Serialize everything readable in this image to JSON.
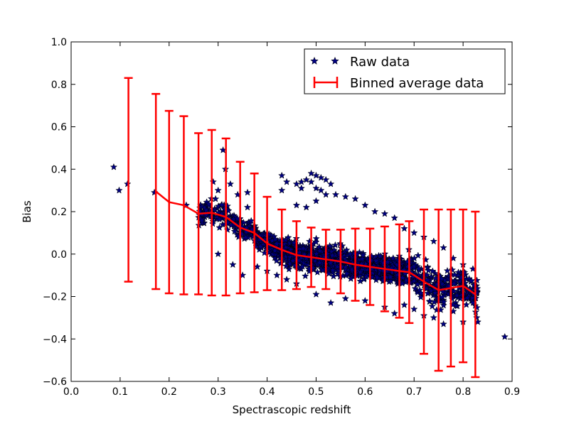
{
  "chart_data": {
    "type": "scatter",
    "title": "",
    "xlabel": "Spectrascopic redshift",
    "ylabel": "Bias",
    "xlim": [
      0.0,
      0.9
    ],
    "ylim": [
      -0.6,
      1.0
    ],
    "xticks": [
      "0.0",
      "0.1",
      "0.2",
      "0.3",
      "0.4",
      "0.5",
      "0.6",
      "0.7",
      "0.8",
      "0.9"
    ],
    "yticks": [
      "−0.6",
      "−0.4",
      "−0.2",
      "0.0",
      "0.2",
      "0.4",
      "0.6",
      "0.8",
      "1.0"
    ],
    "grid": false,
    "legend_position": "top-right",
    "series": [
      {
        "name": "Raw data",
        "kind": "scatter",
        "marker": "star",
        "color": "#00007f",
        "points": [
          [
            0.087,
            0.41
          ],
          [
            0.098,
            0.3
          ],
          [
            0.115,
            0.33
          ],
          [
            0.17,
            0.29
          ],
          [
            0.235,
            0.23
          ],
          [
            0.31,
            0.49
          ],
          [
            0.315,
            0.4
          ],
          [
            0.29,
            0.34
          ],
          [
            0.325,
            0.33
          ],
          [
            0.3,
            0.3
          ],
          [
            0.34,
            0.28
          ],
          [
            0.36,
            0.29
          ],
          [
            0.36,
            0.22
          ],
          [
            0.43,
            0.37
          ],
          [
            0.44,
            0.34
          ],
          [
            0.43,
            0.3
          ],
          [
            0.46,
            0.33
          ],
          [
            0.47,
            0.31
          ],
          [
            0.47,
            0.34
          ],
          [
            0.48,
            0.35
          ],
          [
            0.49,
            0.34
          ],
          [
            0.49,
            0.38
          ],
          [
            0.5,
            0.37
          ],
          [
            0.51,
            0.36
          ],
          [
            0.52,
            0.35
          ],
          [
            0.53,
            0.33
          ],
          [
            0.5,
            0.31
          ],
          [
            0.51,
            0.3
          ],
          [
            0.46,
            0.23
          ],
          [
            0.48,
            0.22
          ],
          [
            0.5,
            0.25
          ],
          [
            0.52,
            0.28
          ],
          [
            0.54,
            0.28
          ],
          [
            0.56,
            0.27
          ],
          [
            0.58,
            0.26
          ],
          [
            0.6,
            0.23
          ],
          [
            0.62,
            0.2
          ],
          [
            0.64,
            0.19
          ],
          [
            0.66,
            0.17
          ],
          [
            0.68,
            0.12
          ],
          [
            0.7,
            0.1
          ],
          [
            0.72,
            0.08
          ],
          [
            0.74,
            0.06
          ],
          [
            0.76,
            0.03
          ],
          [
            0.78,
            -0.02
          ],
          [
            0.8,
            -0.05
          ],
          [
            0.82,
            -0.07
          ],
          [
            0.3,
            0.0
          ],
          [
            0.33,
            -0.05
          ],
          [
            0.35,
            -0.1
          ],
          [
            0.38,
            -0.06
          ],
          [
            0.4,
            -0.08
          ],
          [
            0.42,
            -0.1
          ],
          [
            0.44,
            -0.12
          ],
          [
            0.46,
            -0.14
          ],
          [
            0.5,
            -0.19
          ],
          [
            0.53,
            -0.23
          ],
          [
            0.56,
            -0.21
          ],
          [
            0.6,
            -0.22
          ],
          [
            0.64,
            -0.25
          ],
          [
            0.66,
            -0.28
          ],
          [
            0.68,
            -0.24
          ],
          [
            0.7,
            -0.26
          ],
          [
            0.72,
            -0.29
          ],
          [
            0.74,
            -0.3
          ],
          [
            0.76,
            -0.33
          ],
          [
            0.78,
            -0.27
          ],
          [
            0.8,
            -0.32
          ],
          [
            0.82,
            -0.23
          ],
          [
            0.83,
            -0.32
          ],
          [
            0.885,
            -0.39
          ]
        ]
      },
      {
        "name": "Binned average data",
        "kind": "line_errorbar",
        "color": "#ff0000",
        "x": [
          0.173,
          0.2,
          0.23,
          0.26,
          0.287,
          0.316,
          0.345,
          0.374,
          0.4,
          0.43,
          0.46,
          0.49,
          0.52,
          0.55,
          0.58,
          0.61,
          0.64,
          0.67,
          0.69,
          0.72,
          0.75,
          0.775,
          0.8,
          0.825
        ],
        "y": [
          0.295,
          0.245,
          0.23,
          0.19,
          0.195,
          0.175,
          0.125,
          0.1,
          0.05,
          0.02,
          -0.005,
          -0.015,
          -0.025,
          -0.035,
          -0.05,
          -0.06,
          -0.07,
          -0.08,
          -0.085,
          -0.13,
          -0.17,
          -0.16,
          -0.15,
          -0.19
        ],
        "yerr": [
          0.46,
          0.43,
          0.42,
          0.38,
          0.39,
          0.37,
          0.31,
          0.28,
          0.22,
          0.19,
          0.16,
          0.14,
          0.14,
          0.15,
          0.17,
          0.18,
          0.2,
          0.22,
          0.24,
          0.34,
          0.38,
          0.37,
          0.36,
          0.39
        ],
        "single_point": {
          "x": 0.117,
          "y": 0.35,
          "yerr": 0.48
        }
      }
    ]
  }
}
